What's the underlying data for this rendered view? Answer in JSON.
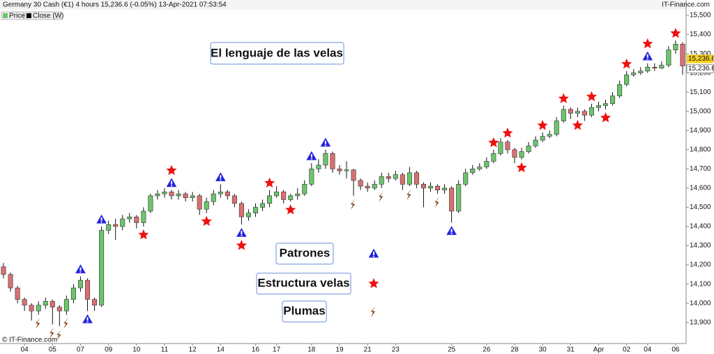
{
  "header": {
    "title": "Germany 30 Cash (€1) 4 hours 15,236.6 (-0.05%) 13-Apr-2021 07:53:54",
    "brand": "IT-Finance.com",
    "legend": [
      "Price",
      "Close (W)"
    ],
    "copyright": "© IT-Finance.com"
  },
  "chart_data": {
    "type": "candlestick",
    "title_box": "El lenguaje de las velas",
    "x": [
      null,
      null,
      null,
      "04",
      null,
      null,
      null,
      "05",
      null,
      null,
      null,
      "07",
      null,
      null,
      null,
      "09",
      null,
      null,
      null,
      "10",
      null,
      null,
      null,
      "11",
      null,
      null,
      null,
      "12",
      null,
      null,
      null,
      "14",
      null,
      null,
      null,
      null,
      "16",
      null,
      null,
      "17",
      null,
      null,
      null,
      null,
      "18",
      null,
      null,
      null,
      "19",
      null,
      null,
      null,
      "21",
      null,
      null,
      null,
      "23",
      null,
      null,
      null,
      null,
      null,
      null,
      null,
      "25",
      null,
      null,
      null,
      null,
      "26",
      null,
      null,
      null,
      "28",
      null,
      null,
      null,
      "30",
      null,
      null,
      null,
      "31",
      null,
      null,
      null,
      "Apr",
      null,
      null,
      null,
      "02",
      null,
      null,
      "04",
      null,
      null,
      null,
      "06",
      null
    ],
    "open": [
      14190,
      14150,
      14080,
      14020,
      13990,
      13960,
      13990,
      14010,
      13980,
      13960,
      14020,
      14080,
      14120,
      14020,
      13990,
      14380,
      14410,
      14400,
      14440,
      14450,
      14420,
      14480,
      14560,
      14570,
      14580,
      14560,
      14570,
      14550,
      14560,
      14490,
      14530,
      14570,
      14580,
      14560,
      14520,
      14450,
      14470,
      14500,
      14520,
      14560,
      14580,
      14540,
      14560,
      14570,
      14620,
      14700,
      14720,
      14780,
      14700,
      14690,
      14695,
      14640,
      14610,
      14600,
      14620,
      14660,
      14650,
      14670,
      14620,
      14680,
      14620,
      14600,
      14610,
      14590,
      14600,
      14480,
      14620,
      14680,
      14700,
      14710,
      14740,
      14780,
      14840,
      14800,
      14760,
      14790,
      14820,
      14850,
      14870,
      14880,
      14950,
      15010,
      14990,
      15000,
      14980,
      15020,
      15030,
      15040,
      15080,
      15140,
      15190,
      15200,
      15210,
      15230,
      15225,
      15240,
      15320,
      15350
    ],
    "high": [
      14210,
      14160,
      14090,
      14030,
      14000,
      14010,
      14030,
      14020,
      13990,
      14040,
      14100,
      14140,
      14130,
      14030,
      14400,
      14430,
      14440,
      14460,
      14470,
      14460,
      14500,
      14570,
      14590,
      14600,
      14590,
      14590,
      14580,
      14580,
      14570,
      14550,
      14590,
      14620,
      14590,
      14570,
      14530,
      14490,
      14520,
      14540,
      14590,
      14610,
      14590,
      14570,
      14600,
      14640,
      14730,
      14750,
      14800,
      14790,
      14720,
      14740,
      14700,
      14650,
      14630,
      14640,
      14680,
      14680,
      14690,
      14680,
      14710,
      14690,
      14630,
      14630,
      14620,
      14620,
      14610,
      14640,
      14700,
      14720,
      14730,
      14760,
      14800,
      14860,
      14850,
      14810,
      14810,
      14840,
      14870,
      14890,
      14900,
      14970,
      15030,
      15020,
      15020,
      15010,
      15040,
      15050,
      15060,
      15100,
      15160,
      15210,
      15220,
      15230,
      15250,
      15250,
      15260,
      15340,
      15370,
      15360
    ],
    "low": [
      14130,
      14060,
      14000,
      13960,
      13910,
      13940,
      13970,
      13890,
      13880,
      13940,
      14000,
      14060,
      13960,
      13960,
      13980,
      14360,
      14330,
      14380,
      14420,
      14390,
      14400,
      14470,
      14540,
      14550,
      14540,
      14540,
      14530,
      14530,
      14460,
      14470,
      14510,
      14550,
      14540,
      14500,
      14410,
      14430,
      14450,
      14480,
      14500,
      14550,
      14520,
      14530,
      14540,
      14560,
      14610,
      14680,
      14700,
      14680,
      14670,
      14650,
      14560,
      14590,
      14580,
      14590,
      14600,
      14630,
      14640,
      14590,
      14610,
      14600,
      14500,
      14580,
      14570,
      14570,
      14420,
      14470,
      14610,
      14670,
      14690,
      14700,
      14730,
      14770,
      14780,
      14730,
      14750,
      14780,
      14810,
      14840,
      14860,
      14870,
      14940,
      14960,
      14970,
      14950,
      14970,
      15000,
      15010,
      15030,
      15070,
      15130,
      15180,
      15190,
      15200,
      15210,
      15220,
      15230,
      15300,
      15190
    ],
    "close": [
      14150,
      14080,
      14020,
      13990,
      13960,
      13990,
      14010,
      13980,
      13960,
      14020,
      14080,
      14120,
      14020,
      13990,
      14380,
      14410,
      14400,
      14440,
      14450,
      14420,
      14480,
      14560,
      14570,
      14580,
      14560,
      14570,
      14550,
      14560,
      14490,
      14530,
      14570,
      14580,
      14560,
      14520,
      14450,
      14470,
      14500,
      14520,
      14560,
      14580,
      14540,
      14560,
      14570,
      14620,
      14700,
      14720,
      14780,
      14700,
      14690,
      14695,
      14640,
      14610,
      14600,
      14620,
      14660,
      14650,
      14670,
      14620,
      14680,
      14620,
      14600,
      14610,
      14590,
      14600,
      14480,
      14620,
      14680,
      14700,
      14710,
      14740,
      14780,
      14840,
      14800,
      14760,
      14790,
      14820,
      14850,
      14870,
      14880,
      14950,
      15010,
      14990,
      15000,
      14980,
      15020,
      15030,
      15040,
      15080,
      15140,
      15190,
      15200,
      15210,
      15230,
      15225,
      15240,
      15320,
      15350,
      15236.6
    ],
    "last_value_labels": [
      "15,236.6",
      "15,236.6"
    ],
    "up_color": "#6cc46c",
    "down_color": "#d97070",
    "ylim": [
      13790,
      15580
    ],
    "yticks": [
      {
        "value": 13900,
        "label": "13,900"
      },
      {
        "value": 14000,
        "label": "14,000"
      },
      {
        "value": 14100,
        "label": "14,100"
      },
      {
        "value": 14200,
        "label": "14,200"
      },
      {
        "value": 14300,
        "label": "14,300"
      },
      {
        "value": 14400,
        "label": "14,400"
      },
      {
        "value": 14500,
        "label": "14,500"
      },
      {
        "value": 14600,
        "label": "14,600"
      },
      {
        "value": 14700,
        "label": "14,700"
      },
      {
        "value": 14800,
        "label": "14,800"
      },
      {
        "value": 14900,
        "label": "14,900"
      },
      {
        "value": 15000,
        "label": "15,000"
      },
      {
        "value": 15100,
        "label": "15,100"
      },
      {
        "value": 15200,
        "label": "15,200"
      },
      {
        "value": 15300,
        "label": "15,300"
      },
      {
        "value": 15400,
        "label": "15,400"
      },
      {
        "value": 15500,
        "label": "15,500"
      }
    ],
    "signals": [
      {
        "name": "Patrones",
        "symbol": "triangle",
        "color": "#2222dd",
        "above": [
          11,
          14,
          24,
          31,
          44,
          46,
          92
        ],
        "below": [
          12,
          34,
          64
        ]
      },
      {
        "name": "Estructura velas",
        "symbol": "star",
        "color": "#ee1111",
        "above": [
          24,
          38,
          70,
          72,
          77,
          80,
          84,
          89,
          92,
          96
        ],
        "below": [
          20,
          29,
          34,
          41,
          74,
          82,
          86
        ]
      },
      {
        "name": "Plumas",
        "symbol": "feather",
        "color": "#8b4513",
        "above": [],
        "below": [
          5,
          7,
          8,
          9,
          50,
          54,
          58,
          62
        ]
      }
    ]
  }
}
